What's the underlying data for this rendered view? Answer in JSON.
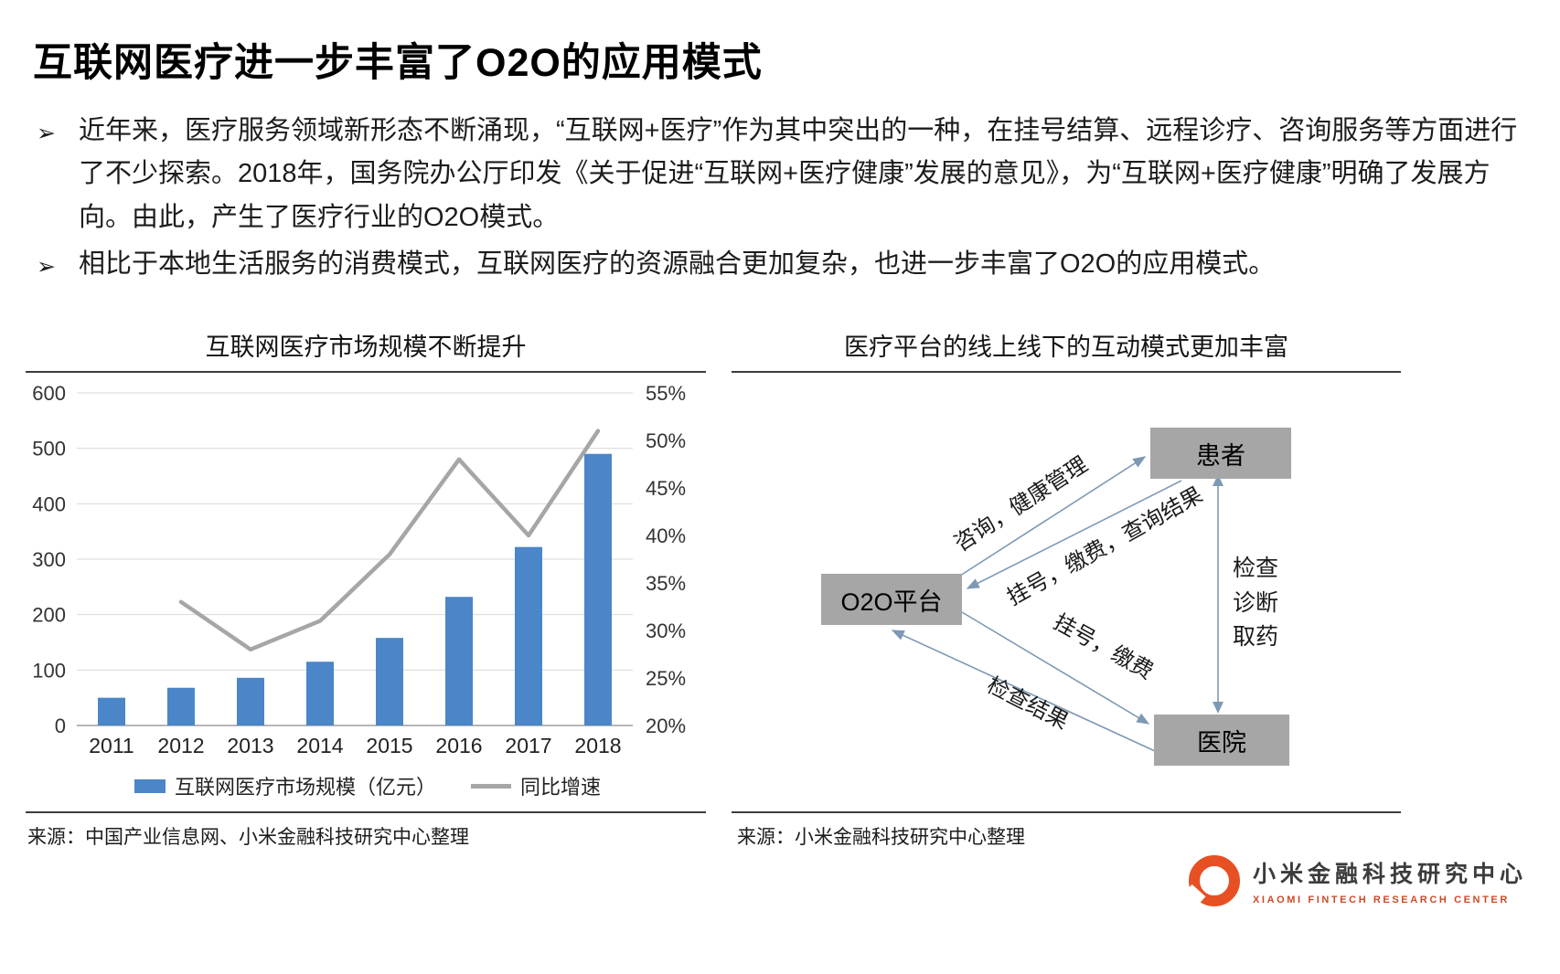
{
  "slide": {
    "title": "互联网医疗进一步丰富了O2O的应用模式",
    "bullet_marker": "➢",
    "bullets": [
      "近年来，医疗服务领域新形态不断涌现，“互联网+医疗”作为其中突出的一种，在挂号结算、远程诊疗、咨询服务等方面进行了不少探索。2018年，国务院办公厅印发《关于促进“互联网+医疗健康”发展的意见》，为“互联网+医疗健康”明确了发展方向。由此，产生了医疗行业的O2O模式。",
      "相比于本地生活服务的消费模式，互联网医疗的资源融合更加复杂，也进一步丰富了O2O的应用模式。"
    ]
  },
  "left_panel": {
    "title": "互联网医疗市场规模不断提升",
    "source": "来源：中国产业信息网、小米金融科技研究中心整理"
  },
  "chart_data": {
    "type": "bar",
    "combo": "bar+line",
    "title": "互联网医疗市场规模不断提升",
    "categories": [
      "2011",
      "2012",
      "2013",
      "2014",
      "2015",
      "2016",
      "2017",
      "2018"
    ],
    "series": [
      {
        "name": "互联网医疗市场规模（亿元）",
        "type": "bar",
        "axis": "left",
        "color": "#4a86c8",
        "values": [
          50,
          68,
          86,
          115,
          158,
          232,
          322,
          490
        ]
      },
      {
        "name": "同比增速",
        "type": "line",
        "axis": "right",
        "color": "#a6a6a6",
        "values": [
          null,
          33,
          28,
          31,
          38,
          48,
          40,
          51
        ]
      }
    ],
    "left_axis": {
      "min": 0,
      "max": 600,
      "step": 100,
      "ticks": [
        "0",
        "100",
        "200",
        "300",
        "400",
        "500",
        "600"
      ]
    },
    "right_axis": {
      "min": 20,
      "max": 55,
      "step": 5,
      "ticks": [
        "20%",
        "25%",
        "30%",
        "35%",
        "40%",
        "45%",
        "50%",
        "55%"
      ]
    },
    "grid": true,
    "legend_position": "bottom"
  },
  "right_panel": {
    "title": "医疗平台的线上线下的互动模式更加丰富",
    "source": "来源：小米金融科技研究中心整理",
    "nodes": {
      "patient": "患者",
      "platform": "O2O平台",
      "hospital": "医院"
    },
    "edge_labels": {
      "consult": "咨询，健康管理",
      "register_query": "挂号，缴费，查询结果",
      "register_pay": "挂号，缴费",
      "check_result": "检查结果",
      "vertical": [
        "检查",
        "诊断",
        "取药"
      ]
    }
  },
  "footer": {
    "brand_name": "小米金融科技研究中心",
    "brand_sub": "XIAOMI FINTECH RESEARCH CENTER",
    "brand_color": "#e65023"
  }
}
